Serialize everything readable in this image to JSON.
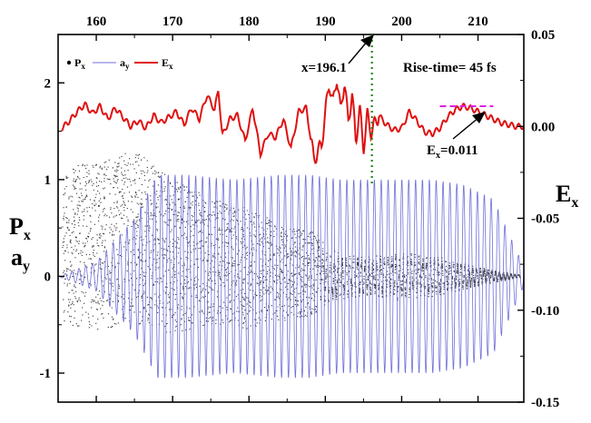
{
  "chart_data": {
    "type": "line",
    "title": "",
    "x_range": [
      155,
      216
    ],
    "x_ticks": [
      "160",
      "170",
      "180",
      "190",
      "200",
      "210"
    ],
    "left_axis": {
      "label_main": "P",
      "label_sub": "x",
      "label2_main": "a",
      "label2_sub": "y",
      "range": [
        -1.3,
        2.5
      ],
      "ticks": [
        "-1",
        "0",
        "1",
        "2"
      ]
    },
    "right_axis": {
      "label_main": "E",
      "label_sub": "x",
      "range": [
        -0.15,
        0.05
      ],
      "ticks": [
        "-0.15",
        "-0.10",
        "-0.05",
        "0.00",
        "0.05"
      ]
    },
    "legend": {
      "placement": "top-left",
      "items": [
        {
          "main": "P",
          "sub": "x",
          "color": "#000000",
          "marker": "dot"
        },
        {
          "main": "a",
          "sub": "y",
          "color": "#6f6fd8",
          "marker": "line"
        },
        {
          "main": "E",
          "sub": "x",
          "color": "#e01010",
          "marker": "line"
        }
      ]
    },
    "series": [
      {
        "name": "Px",
        "axis": "left",
        "color": "#000000",
        "style": "scatter",
        "description_points": {
          "x": [
            155.5,
            160,
            165,
            170,
            175,
            180,
            185,
            189,
            190,
            192,
            195,
            200,
            205,
            210,
            215
          ],
          "upper": [
            1.1,
            1.2,
            1.3,
            1.0,
            0.8,
            0.7,
            0.5,
            0.45,
            0.3,
            0.25,
            0.2,
            0.25,
            0.2,
            0.1,
            0.02
          ],
          "lower": [
            -0.5,
            -0.55,
            -0.5,
            -0.6,
            -0.5,
            -0.55,
            -0.45,
            -0.4,
            -0.1,
            -0.15,
            -0.2,
            -0.25,
            -0.2,
            -0.1,
            -0.02
          ]
        }
      },
      {
        "name": "ay",
        "axis": "left",
        "color": "#6f6fd8",
        "style": "line",
        "envelope": {
          "x": [
            155,
            160,
            165,
            168,
            172,
            178,
            184,
            188,
            192,
            196,
            200,
            204,
            208,
            212,
            214,
            216
          ],
          "amp": [
            0.0,
            0.15,
            0.6,
            1.05,
            1.05,
            1.0,
            1.05,
            1.05,
            1.0,
            1.0,
            1.0,
            1.0,
            0.95,
            0.8,
            0.45,
            0.1
          ]
        },
        "period": 0.9
      },
      {
        "name": "Ex",
        "axis": "right",
        "color": "#e01010",
        "style": "line",
        "x": [
          155.5,
          156.5,
          157.5,
          158.5,
          159.5,
          160.5,
          161.5,
          162.5,
          163.5,
          164.5,
          165.5,
          166.5,
          167.5,
          168.5,
          169.5,
          170.5,
          171.5,
          172.5,
          173.5,
          174.5,
          175.5,
          176.0,
          176.5,
          177.5,
          178.5,
          179.5,
          180.5,
          181.5,
          182.5,
          183.5,
          184.5,
          185.5,
          186.5,
          187.5,
          188.5,
          189.5,
          190.5,
          191.0,
          191.5,
          192.0,
          192.5,
          193.0,
          193.5,
          194.0,
          194.5,
          195.0,
          195.5,
          196.0,
          197.0,
          198.0,
          199.0,
          200.0,
          201.0,
          202.0,
          203.0,
          204.0,
          205.0,
          206.0,
          207.0,
          208.0,
          209.0,
          210.0,
          211.0,
          212.0,
          213.0,
          214.0,
          215.0,
          216.0
        ],
        "y": [
          -0.001,
          0.003,
          0.008,
          0.012,
          0.007,
          0.011,
          0.004,
          0.01,
          0.005,
          0.0,
          0.003,
          -0.001,
          0.006,
          0.002,
          0.005,
          0.008,
          0.001,
          0.01,
          0.004,
          0.017,
          0.009,
          0.02,
          -0.005,
          0.004,
          0.006,
          -0.008,
          0.01,
          -0.015,
          -0.004,
          -0.006,
          0.004,
          -0.012,
          0.008,
          0.01,
          -0.018,
          -0.01,
          0.024,
          0.012,
          0.027,
          0.008,
          0.025,
          0.002,
          0.018,
          -0.008,
          0.01,
          -0.012,
          0.006,
          -0.003,
          0.006,
          0.001,
          -0.002,
          -0.001,
          0.008,
          0.003,
          -0.003,
          -0.004,
          -0.001,
          0.005,
          0.009,
          0.011,
          0.01,
          0.008,
          0.006,
          0.004,
          0.002,
          0.001,
          0.0,
          0.0
        ]
      }
    ],
    "annotations": {
      "vline_label": "x=196.1",
      "vline_x": 196.1,
      "rise_time": "Rise-time= 45 fs",
      "ex_main": "E",
      "ex_sub": "x",
      "ex_value": "=0.011",
      "ex_level": 0.011,
      "ex_level_x_range": [
        205.0,
        212.0
      ]
    }
  }
}
